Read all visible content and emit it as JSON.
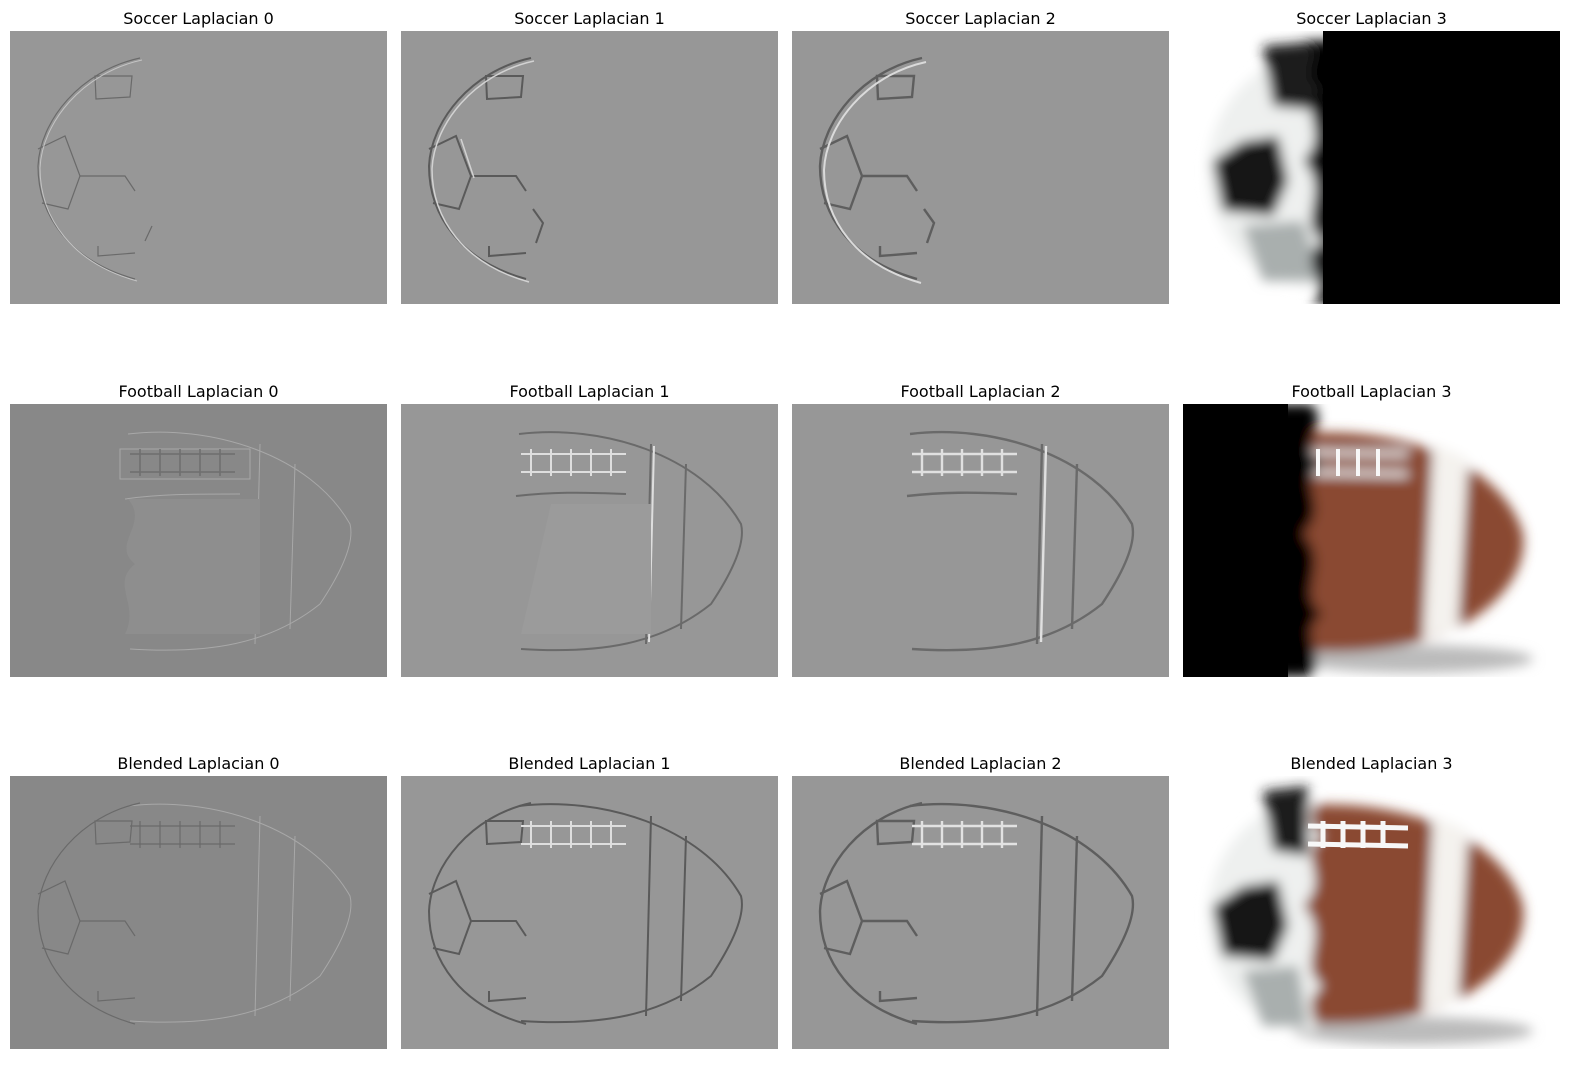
{
  "figure": {
    "rows": [
      {
        "name": "soccer",
        "panels": [
          {
            "title": "Soccer Laplacian 0",
            "content": "soccer-edges"
          },
          {
            "title": "Soccer Laplacian 1",
            "content": "soccer-edges"
          },
          {
            "title": "Soccer Laplacian 2",
            "content": "soccer-edges"
          },
          {
            "title": "Soccer Laplacian 3",
            "content": "soccer-residual"
          }
        ]
      },
      {
        "name": "football",
        "panels": [
          {
            "title": "Football Laplacian 0",
            "content": "football-edges"
          },
          {
            "title": "Football Laplacian 1",
            "content": "football-edges"
          },
          {
            "title": "Football Laplacian 2",
            "content": "football-edges"
          },
          {
            "title": "Football Laplacian 3",
            "content": "football-residual"
          }
        ]
      },
      {
        "name": "blended",
        "panels": [
          {
            "title": "Blended Laplacian 0",
            "content": "blended-edges"
          },
          {
            "title": "Blended Laplacian 1",
            "content": "blended-edges"
          },
          {
            "title": "Blended Laplacian 2",
            "content": "blended-edges"
          },
          {
            "title": "Blended Laplacian 3",
            "content": "blended-residual"
          }
        ]
      }
    ],
    "colors": {
      "laplacian_gray": "#979797",
      "laplacian_gray_level0": "#888888",
      "soccer_white": "#eef0ef",
      "soccer_black": "#121212",
      "football_brown": "#8a4a30",
      "stripe_white": "#f4f2ee",
      "lace_white": "#f7f7f7"
    }
  }
}
